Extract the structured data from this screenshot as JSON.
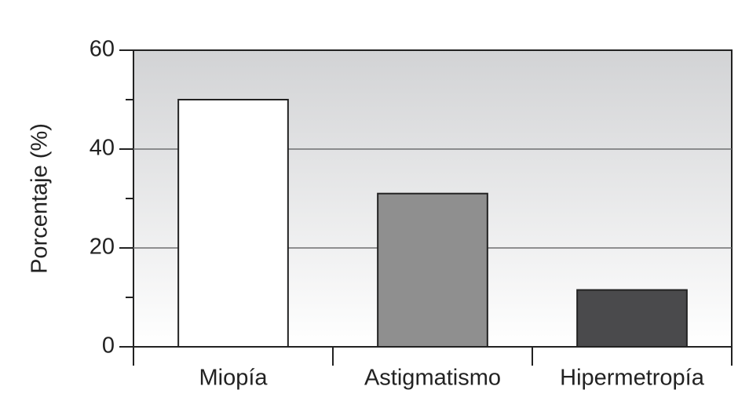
{
  "chart_data": {
    "type": "bar",
    "y_label": "Porcentaje (%)",
    "categories": [
      "Miopía",
      "Astigmatismo",
      "Hipermetropía"
    ],
    "values": [
      50,
      31,
      11.5
    ],
    "colors": [
      "#ffffff",
      "#8f8f8f",
      "#4a4a4c"
    ],
    "ylim": [
      0,
      60
    ],
    "yticks": [
      0,
      20,
      40,
      60
    ],
    "minor_yticks": [
      10,
      30,
      50
    ],
    "grid": true
  }
}
